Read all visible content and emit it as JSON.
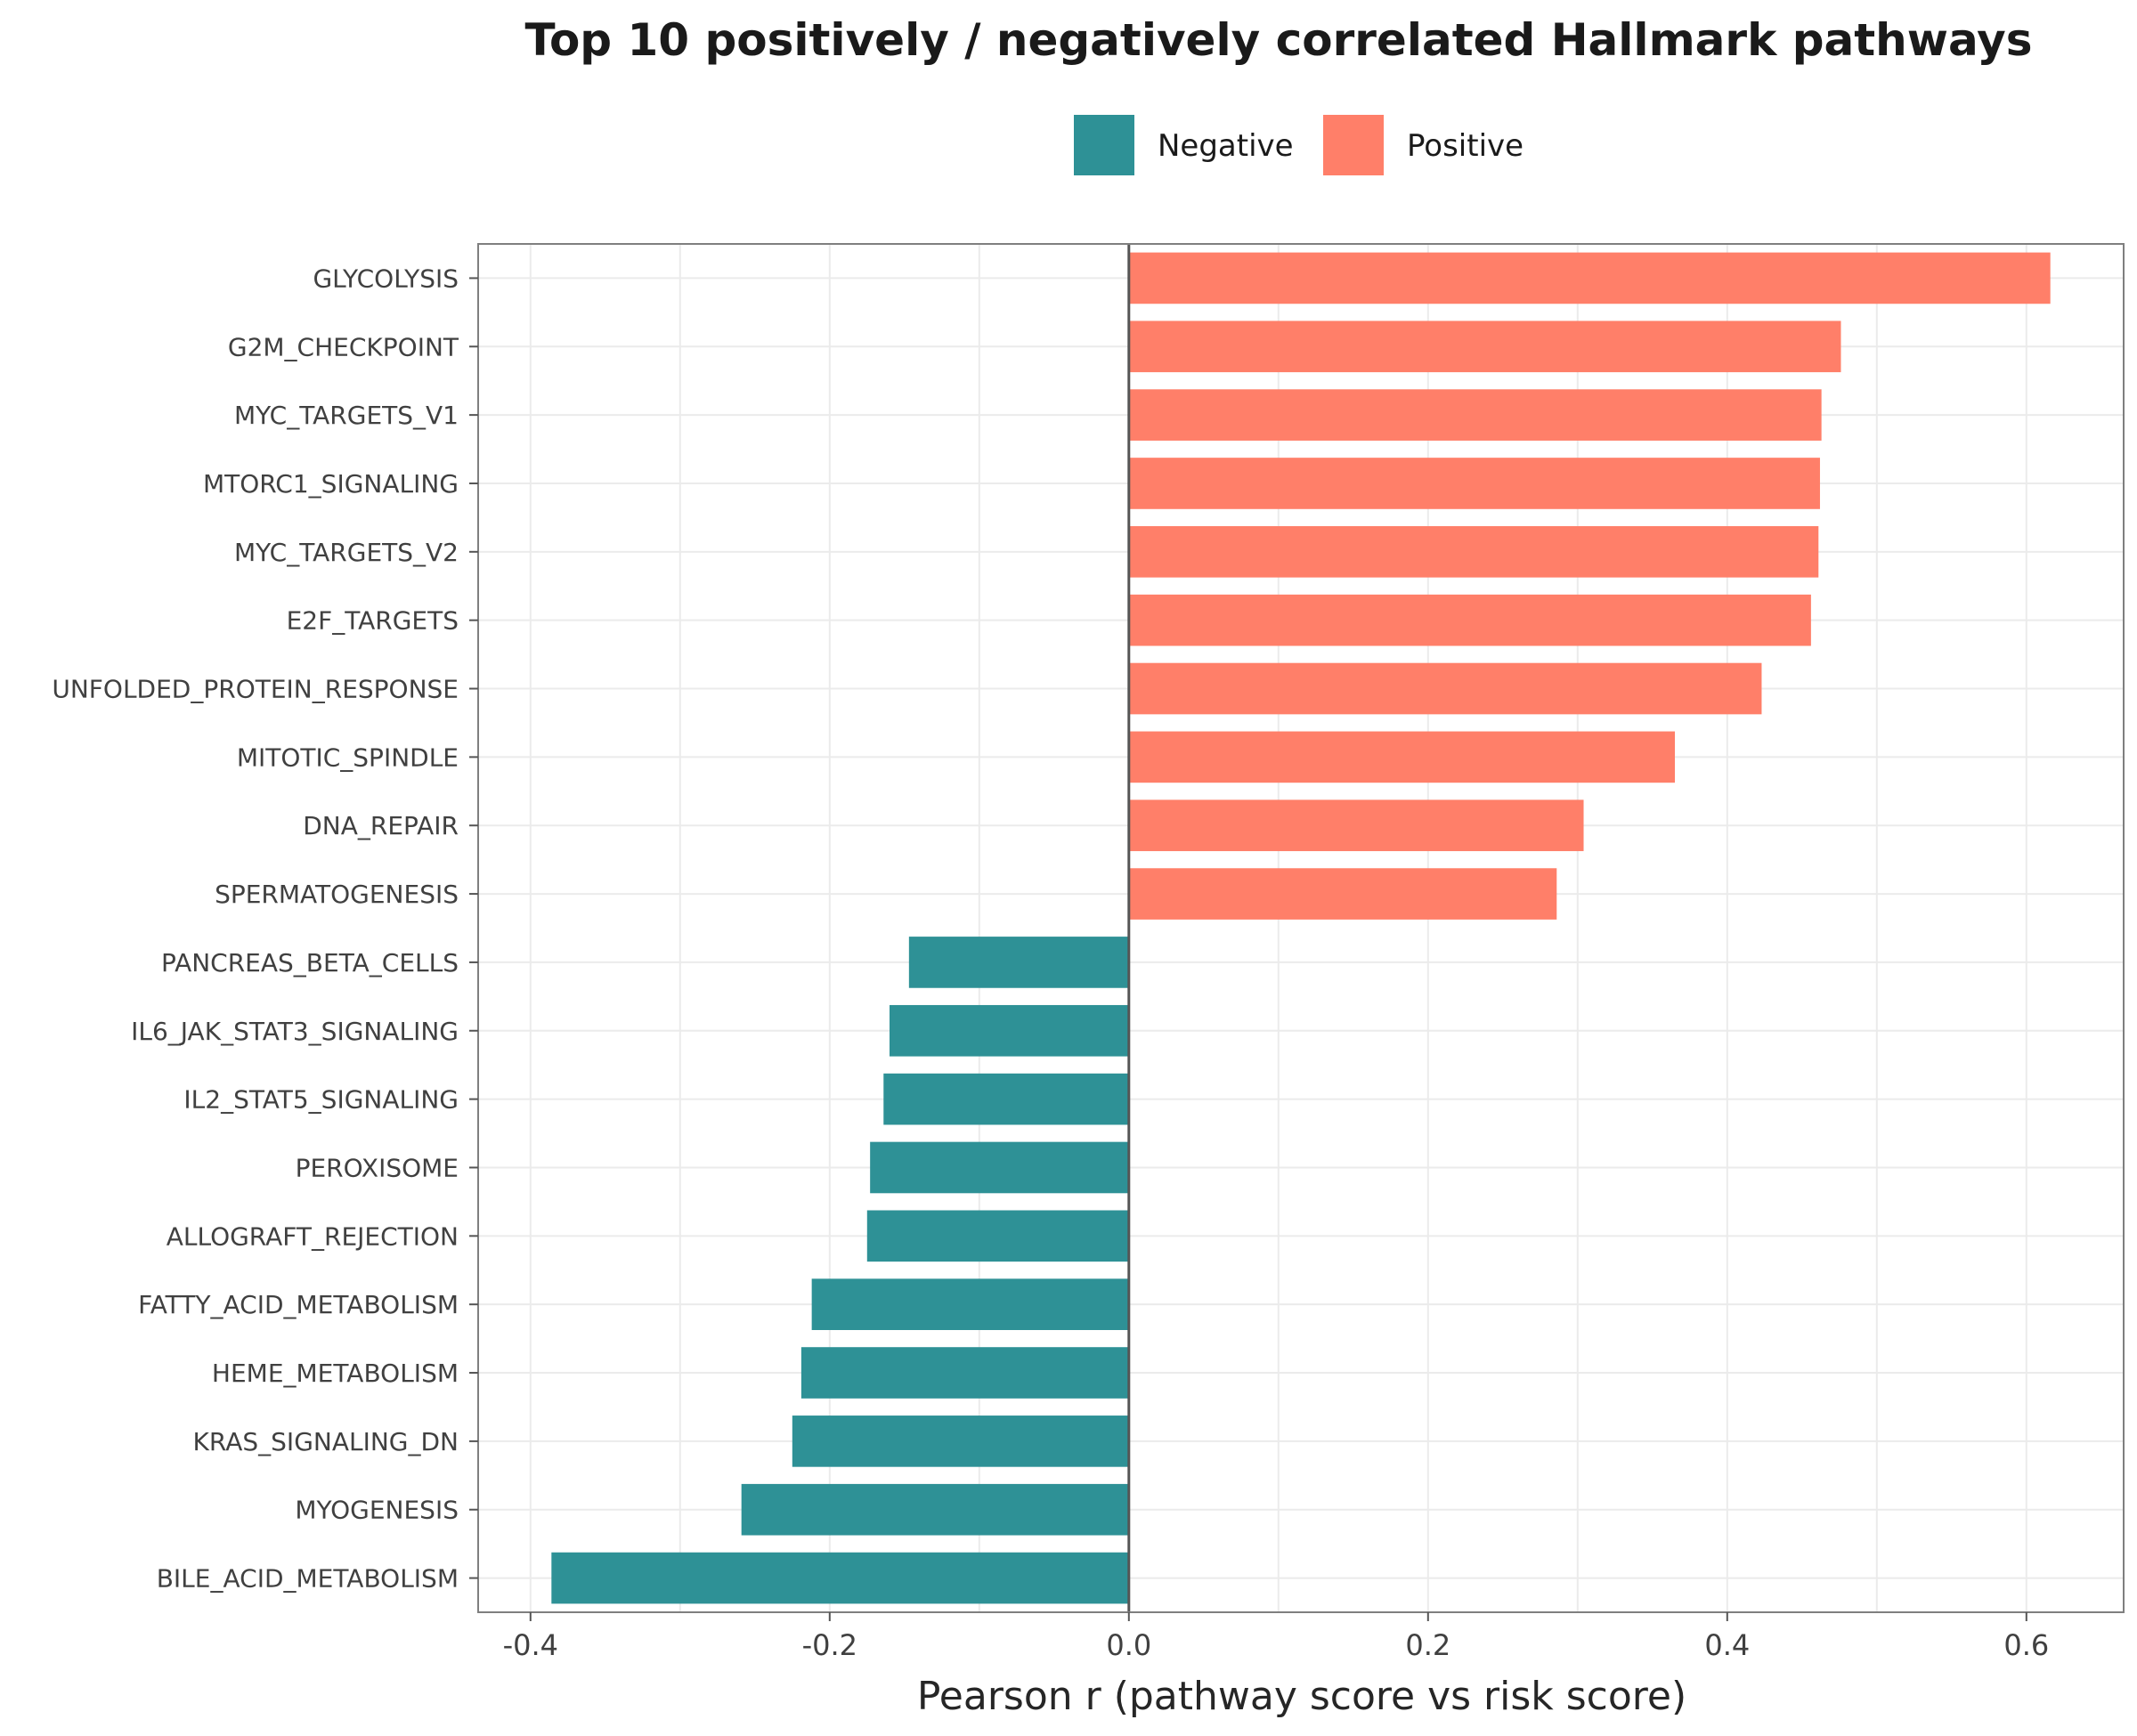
{
  "chart_data": {
    "type": "bar",
    "orientation": "horizontal",
    "title": "Top 10 positively / negatively correlated Hallmark pathways",
    "xlabel": "Pearson r (pathway score vs risk score)",
    "ylabel": "",
    "xlim": [
      -0.435,
      0.665
    ],
    "xticks": [
      -0.4,
      -0.2,
      0.0,
      0.2,
      0.4,
      0.6
    ],
    "xtick_labels": [
      "-0.4",
      "-0.2",
      "0.0",
      "0.2",
      "0.4",
      "0.6"
    ],
    "grid": true,
    "legend_position": "top",
    "legend": [
      {
        "name": "Negative",
        "color": "#2e9196"
      },
      {
        "name": "Positive",
        "color": "#ff7f69"
      }
    ],
    "categories": [
      "GLYCOLYSIS",
      "G2M_CHECKPOINT",
      "MYC_TARGETS_V1",
      "MTORC1_SIGNALING",
      "MYC_TARGETS_V2",
      "E2F_TARGETS",
      "UNFOLDED_PROTEIN_RESPONSE",
      "MITOTIC_SPINDLE",
      "DNA_REPAIR",
      "SPERMATOGENESIS",
      "PANCREAS_BETA_CELLS",
      "IL6_JAK_STAT3_SIGNALING",
      "IL2_STAT5_SIGNALING",
      "PEROXISOME",
      "ALLOGRAFT_REJECTION",
      "FATTY_ACID_METABOLISM",
      "HEME_METABOLISM",
      "KRAS_SIGNALING_DN",
      "MYOGENESIS",
      "BILE_ACID_METABOLISM"
    ],
    "values": [
      0.616,
      0.476,
      0.463,
      0.462,
      0.461,
      0.456,
      0.423,
      0.365,
      0.304,
      0.286,
      -0.147,
      -0.16,
      -0.164,
      -0.173,
      -0.175,
      -0.212,
      -0.219,
      -0.225,
      -0.259,
      -0.386
    ],
    "groups": [
      "Positive",
      "Positive",
      "Positive",
      "Positive",
      "Positive",
      "Positive",
      "Positive",
      "Positive",
      "Positive",
      "Positive",
      "Negative",
      "Negative",
      "Negative",
      "Negative",
      "Negative",
      "Negative",
      "Negative",
      "Negative",
      "Negative",
      "Negative"
    ]
  }
}
